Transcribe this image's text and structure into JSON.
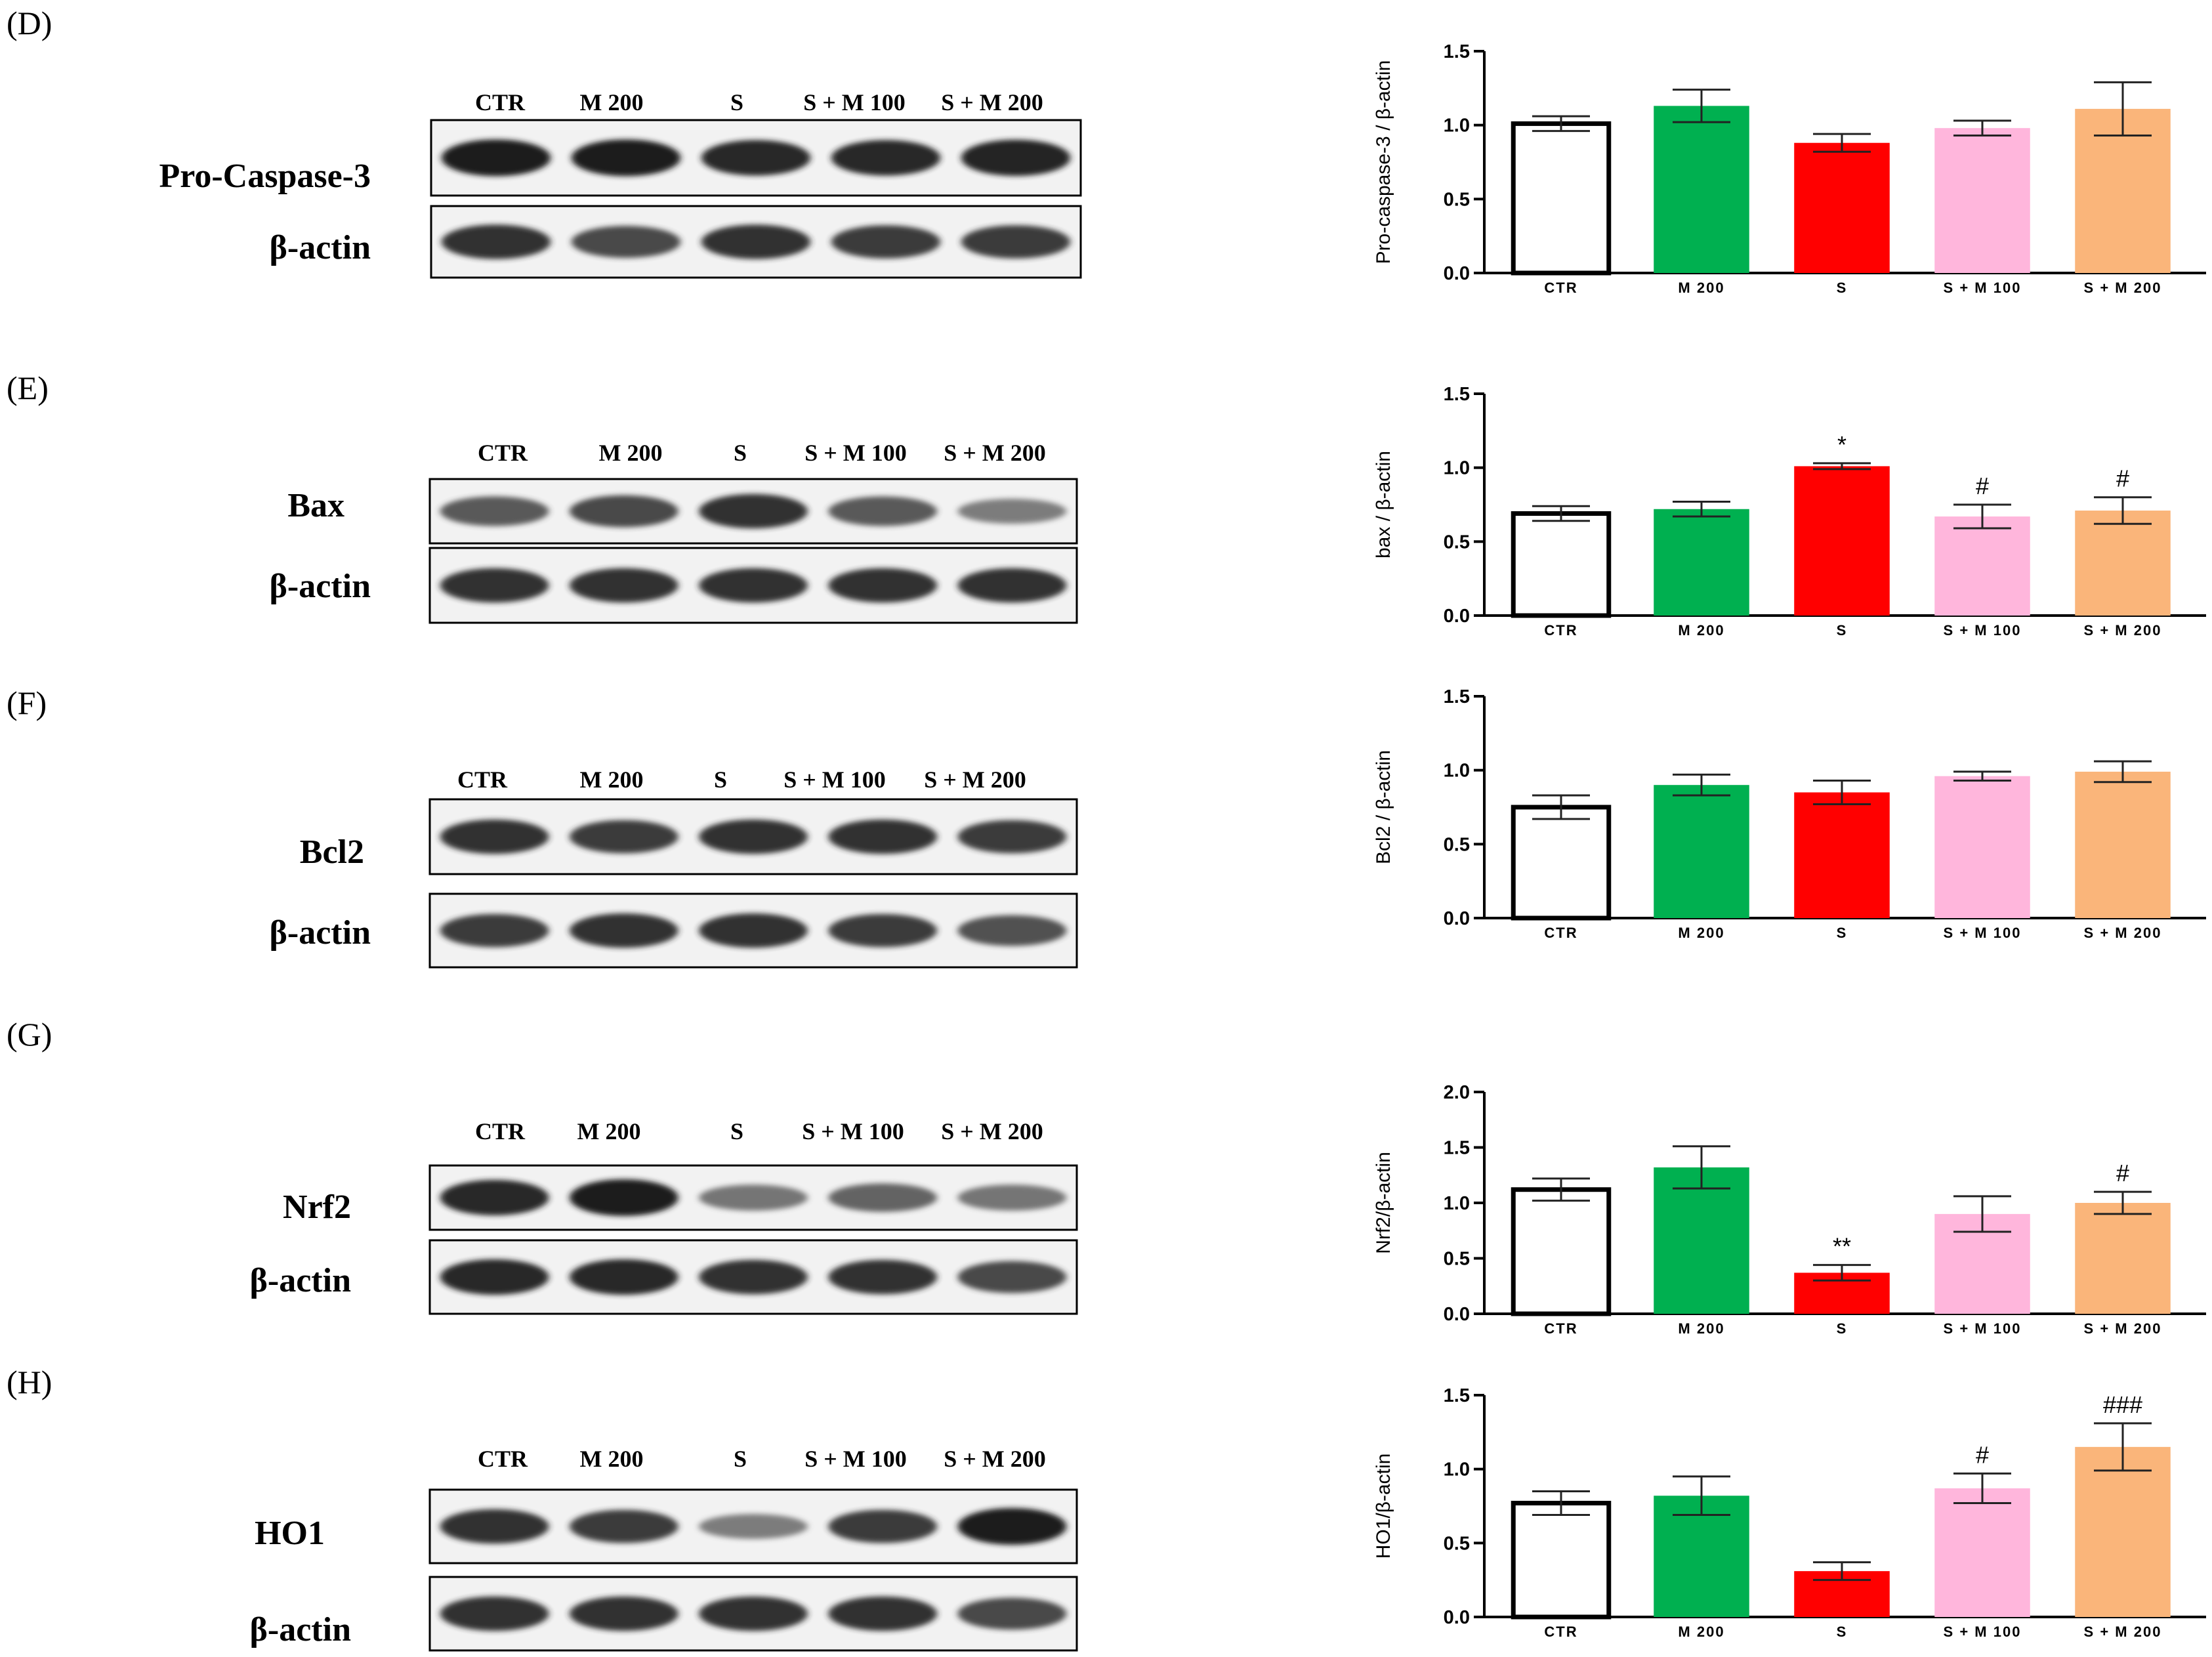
{
  "lanes": [
    "CTR",
    "M 200",
    "S",
    "S + M 100",
    "S + M 200"
  ],
  "series_colors": [
    "#ffffff",
    "#00b050",
    "#ff0000",
    "#ffb6dc",
    "#fab57a"
  ],
  "panels": [
    {
      "letter": "(D)",
      "blots": [
        {
          "label": "Pro-Caspase-3",
          "band_intensity": [
            1.0,
            1.0,
            0.95,
            0.95,
            0.98
          ]
        },
        {
          "label": "β-actin",
          "band_intensity": [
            0.9,
            0.8,
            0.9,
            0.85,
            0.85
          ]
        }
      ],
      "chart_data": {
        "type": "bar",
        "categories": [
          "CTR",
          "M 200",
          "S",
          "S + M 100",
          "S + M 200"
        ],
        "values": [
          1.01,
          1.13,
          0.88,
          0.98,
          1.11
        ],
        "errors": [
          0.05,
          0.11,
          0.06,
          0.05,
          0.18
        ],
        "annotations": [
          "",
          "",
          "",
          "",
          ""
        ],
        "ylabel": "Pro-caspase-3 / β-actin",
        "ylim": [
          0,
          1.5
        ],
        "yticks": [
          "0.0",
          "0.5",
          "1.0",
          "1.5"
        ]
      }
    },
    {
      "letter": "(E)",
      "blots": [
        {
          "label": "Bax",
          "band_intensity": [
            0.7,
            0.8,
            0.9,
            0.7,
            0.5
          ]
        },
        {
          "label": "β-actin",
          "band_intensity": [
            0.9,
            0.9,
            0.9,
            0.9,
            0.9
          ]
        }
      ],
      "chart_data": {
        "type": "bar",
        "categories": [
          "CTR",
          "M 200",
          "S",
          "S + M 100",
          "S + M 200"
        ],
        "values": [
          0.69,
          0.72,
          1.01,
          0.67,
          0.71
        ],
        "errors": [
          0.05,
          0.05,
          0.02,
          0.08,
          0.09
        ],
        "annotations": [
          "",
          "",
          "*",
          "#",
          "#"
        ],
        "ylabel": "bax / β-actin",
        "ylim": [
          0,
          1.5
        ],
        "yticks": [
          "0.0",
          "0.5",
          "1.0",
          "1.5"
        ]
      }
    },
    {
      "letter": "(F)",
      "blots": [
        {
          "label": "Bcl2",
          "band_intensity": [
            0.9,
            0.85,
            0.9,
            0.9,
            0.85
          ]
        },
        {
          "label": "β-actin",
          "band_intensity": [
            0.85,
            0.9,
            0.9,
            0.85,
            0.75
          ]
        }
      ],
      "chart_data": {
        "type": "bar",
        "categories": [
          "CTR",
          "M 200",
          "S",
          "S + M 100",
          "S + M 200"
        ],
        "values": [
          0.75,
          0.9,
          0.85,
          0.96,
          0.99
        ],
        "errors": [
          0.08,
          0.07,
          0.08,
          0.03,
          0.07
        ],
        "annotations": [
          "",
          "",
          "",
          "",
          ""
        ],
        "ylabel": "Bcl2 / β-actin",
        "ylim": [
          0,
          1.5
        ],
        "yticks": [
          "0.0",
          "0.5",
          "1.0",
          "1.5"
        ]
      }
    },
    {
      "letter": "(G)",
      "blots": [
        {
          "label": "Nrf2",
          "band_intensity": [
            0.95,
            1.0,
            0.55,
            0.65,
            0.55
          ]
        },
        {
          "label": "β-actin",
          "band_intensity": [
            0.95,
            0.95,
            0.9,
            0.9,
            0.8
          ]
        }
      ],
      "chart_data": {
        "type": "bar",
        "categories": [
          "CTR",
          "M 200",
          "S",
          "S + M 100",
          "S + M 200"
        ],
        "values": [
          1.12,
          1.32,
          0.37,
          0.9,
          1.0
        ],
        "errors": [
          0.1,
          0.19,
          0.07,
          0.16,
          0.1
        ],
        "annotations": [
          "",
          "",
          "**",
          "",
          "#"
        ],
        "ylabel": "Nrf2/β-actin",
        "ylim": [
          0,
          2.0
        ],
        "yticks": [
          "0.0",
          "0.5",
          "1.0",
          "1.5",
          "2.0"
        ]
      }
    },
    {
      "letter": "(H)",
      "blots": [
        {
          "label": "HO1",
          "band_intensity": [
            0.9,
            0.85,
            0.5,
            0.85,
            1.0
          ]
        },
        {
          "label": "β-actin",
          "band_intensity": [
            0.9,
            0.9,
            0.9,
            0.9,
            0.8
          ]
        }
      ],
      "chart_data": {
        "type": "bar",
        "categories": [
          "CTR",
          "M 200",
          "S",
          "S + M 100",
          "S + M 200"
        ],
        "values": [
          0.77,
          0.82,
          0.31,
          0.87,
          1.15
        ],
        "errors": [
          0.08,
          0.13,
          0.06,
          0.1,
          0.16
        ],
        "annotations": [
          "",
          "",
          "",
          "#",
          "###"
        ],
        "ylabel": "HO1/β-actin",
        "ylim": [
          0,
          1.5
        ],
        "yticks": [
          "0.0",
          "0.5",
          "1.0",
          "1.5"
        ]
      }
    }
  ]
}
